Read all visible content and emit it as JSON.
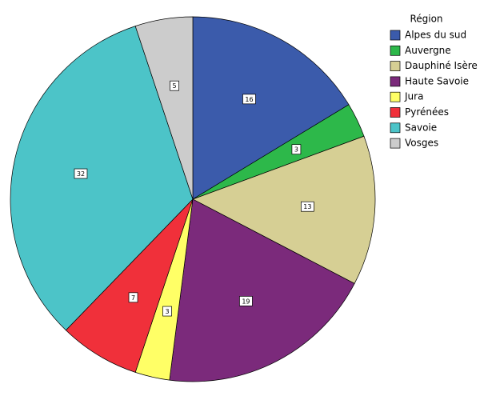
{
  "chart_data": {
    "type": "pie",
    "legend_title": "Région",
    "categories": [
      "Alpes du sud",
      "Auvergne",
      "Dauphiné Isère",
      "Haute Savoie",
      "Jura",
      "Pyrénées",
      "Savoie",
      "Vosges"
    ],
    "values": [
      16,
      3,
      13,
      19,
      3,
      7,
      32,
      5
    ],
    "colors": [
      "#3b5bab",
      "#2db84a",
      "#d6cf94",
      "#7b2a7b",
      "#ffff66",
      "#f0303a",
      "#4cc4c8",
      "#cccccc"
    ],
    "legend": "right"
  }
}
